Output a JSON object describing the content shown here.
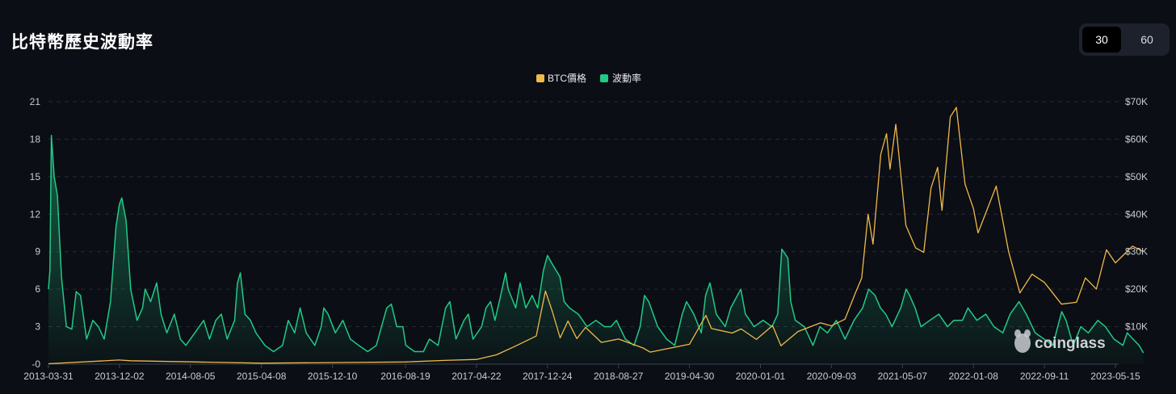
{
  "header": {
    "title": "比特幣歷史波動率"
  },
  "period_toggle": {
    "options": [
      "30",
      "60"
    ],
    "selected": "30"
  },
  "watermark": "coinglass",
  "chart_data": {
    "type": "line",
    "title": "比特幣歷史波動率",
    "legend": {
      "placement": "top-center",
      "entries": [
        "BTC價格",
        "波動率"
      ]
    },
    "grid": true,
    "x_tick_labels": [
      "2013-03-31",
      "2013-12-02",
      "2014-08-05",
      "2015-04-08",
      "2015-12-10",
      "2016-08-19",
      "2017-04-22",
      "2017-12-24",
      "2018-08-27",
      "2019-04-30",
      "2020-01-01",
      "2020-09-03",
      "2021-05-07",
      "2022-01-08",
      "2022-09-11",
      "2023-05-15"
    ],
    "y_left_ticks": [
      "-0",
      "3",
      "6",
      "9",
      "12",
      "15",
      "18",
      "21"
    ],
    "y_left_range": [
      0,
      21
    ],
    "y_right_ticks": [
      "$10K",
      "$20K",
      "$30K",
      "$40K",
      "$50K",
      "$60K",
      "$70K"
    ],
    "y_right_range": [
      0,
      70000
    ],
    "colors": {
      "price": "#f0b94a",
      "volatility": "#22c987"
    },
    "series": [
      {
        "name": "波動率",
        "axis": "left",
        "points": [
          [
            "2013-03-31",
            6.0
          ],
          [
            "2013-04-05",
            7.5
          ],
          [
            "2013-04-10",
            18.3
          ],
          [
            "2013-04-20",
            15.0
          ],
          [
            "2013-05-01",
            13.5
          ],
          [
            "2013-05-15",
            7.0
          ],
          [
            "2013-06-01",
            3.0
          ],
          [
            "2013-06-20",
            2.8
          ],
          [
            "2013-07-05",
            5.8
          ],
          [
            "2013-07-20",
            5.5
          ],
          [
            "2013-08-10",
            2.0
          ],
          [
            "2013-09-01",
            3.5
          ],
          [
            "2013-09-20",
            3.0
          ],
          [
            "2013-10-10",
            2.0
          ],
          [
            "2013-11-01",
            5.0
          ],
          [
            "2013-11-20",
            11.0
          ],
          [
            "2013-12-02",
            12.8
          ],
          [
            "2013-12-10",
            13.3
          ],
          [
            "2013-12-25",
            11.5
          ],
          [
            "2014-01-10",
            6.0
          ],
          [
            "2014-02-01",
            3.5
          ],
          [
            "2014-02-20",
            4.5
          ],
          [
            "2014-03-01",
            6.0
          ],
          [
            "2014-03-20",
            5.0
          ],
          [
            "2014-04-10",
            6.5
          ],
          [
            "2014-04-25",
            4.0
          ],
          [
            "2014-05-15",
            2.5
          ],
          [
            "2014-06-10",
            4.0
          ],
          [
            "2014-07-01",
            2.0
          ],
          [
            "2014-07-20",
            1.5
          ],
          [
            "2014-08-20",
            2.5
          ],
          [
            "2014-09-20",
            3.5
          ],
          [
            "2014-10-10",
            2.0
          ],
          [
            "2014-11-01",
            3.5
          ],
          [
            "2014-11-20",
            4.0
          ],
          [
            "2014-12-10",
            2.0
          ],
          [
            "2015-01-05",
            3.5
          ],
          [
            "2015-01-15",
            6.5
          ],
          [
            "2015-01-25",
            7.3
          ],
          [
            "2015-02-10",
            4.0
          ],
          [
            "2015-03-01",
            3.5
          ],
          [
            "2015-03-20",
            2.5
          ],
          [
            "2015-04-20",
            1.5
          ],
          [
            "2015-05-20",
            1.0
          ],
          [
            "2015-06-20",
            1.5
          ],
          [
            "2015-07-10",
            3.5
          ],
          [
            "2015-08-01",
            2.5
          ],
          [
            "2015-08-20",
            4.5
          ],
          [
            "2015-09-10",
            2.5
          ],
          [
            "2015-10-10",
            1.5
          ],
          [
            "2015-11-01",
            3.0
          ],
          [
            "2015-11-10",
            4.5
          ],
          [
            "2015-11-25",
            4.0
          ],
          [
            "2015-12-20",
            2.5
          ],
          [
            "2016-01-15",
            3.5
          ],
          [
            "2016-02-10",
            2.0
          ],
          [
            "2016-03-10",
            1.5
          ],
          [
            "2016-04-10",
            1.0
          ],
          [
            "2016-05-10",
            1.5
          ],
          [
            "2016-06-15",
            4.5
          ],
          [
            "2016-07-01",
            4.8
          ],
          [
            "2016-07-20",
            3.0
          ],
          [
            "2016-08-10",
            3.0
          ],
          [
            "2016-08-20",
            1.5
          ],
          [
            "2016-09-20",
            1.0
          ],
          [
            "2016-10-20",
            1.0
          ],
          [
            "2016-11-10",
            2.0
          ],
          [
            "2016-12-10",
            1.5
          ],
          [
            "2017-01-05",
            4.5
          ],
          [
            "2017-01-20",
            5.0
          ],
          [
            "2017-02-10",
            2.0
          ],
          [
            "2017-03-10",
            3.5
          ],
          [
            "2017-03-25",
            4.0
          ],
          [
            "2017-04-10",
            2.0
          ],
          [
            "2017-05-10",
            3.0
          ],
          [
            "2017-05-25",
            4.5
          ],
          [
            "2017-06-10",
            5.0
          ],
          [
            "2017-06-25",
            3.5
          ],
          [
            "2017-07-15",
            5.5
          ],
          [
            "2017-08-01",
            7.3
          ],
          [
            "2017-08-10",
            6.0
          ],
          [
            "2017-09-05",
            4.5
          ],
          [
            "2017-09-20",
            6.5
          ],
          [
            "2017-10-10",
            4.5
          ],
          [
            "2017-11-01",
            5.5
          ],
          [
            "2017-11-20",
            4.5
          ],
          [
            "2017-12-10",
            7.5
          ],
          [
            "2017-12-24",
            8.7
          ],
          [
            "2018-01-10",
            8.0
          ],
          [
            "2018-02-05",
            7.0
          ],
          [
            "2018-02-20",
            5.0
          ],
          [
            "2018-03-10",
            4.5
          ],
          [
            "2018-04-10",
            4.0
          ],
          [
            "2018-05-10",
            3.0
          ],
          [
            "2018-06-10",
            3.5
          ],
          [
            "2018-07-10",
            3.0
          ],
          [
            "2018-08-01",
            3.0
          ],
          [
            "2018-08-20",
            3.5
          ],
          [
            "2018-09-20",
            2.0
          ],
          [
            "2018-10-20",
            1.5
          ],
          [
            "2018-11-10",
            3.0
          ],
          [
            "2018-11-25",
            5.5
          ],
          [
            "2018-12-10",
            5.0
          ],
          [
            "2019-01-10",
            3.0
          ],
          [
            "2019-02-10",
            2.0
          ],
          [
            "2019-03-10",
            1.5
          ],
          [
            "2019-04-05",
            4.0
          ],
          [
            "2019-04-20",
            5.0
          ],
          [
            "2019-05-15",
            4.0
          ],
          [
            "2019-06-10",
            2.5
          ],
          [
            "2019-06-25",
            5.5
          ],
          [
            "2019-07-10",
            6.5
          ],
          [
            "2019-08-01",
            4.0
          ],
          [
            "2019-09-01",
            3.0
          ],
          [
            "2019-09-20",
            4.5
          ],
          [
            "2019-10-25",
            6.0
          ],
          [
            "2019-11-10",
            4.0
          ],
          [
            "2019-12-10",
            3.0
          ],
          [
            "2020-01-10",
            3.5
          ],
          [
            "2020-02-10",
            3.0
          ],
          [
            "2020-03-01",
            4.0
          ],
          [
            "2020-03-15",
            9.2
          ],
          [
            "2020-04-05",
            8.5
          ],
          [
            "2020-04-15",
            5.0
          ],
          [
            "2020-05-01",
            3.5
          ],
          [
            "2020-06-01",
            3.0
          ],
          [
            "2020-07-01",
            1.5
          ],
          [
            "2020-07-25",
            3.0
          ],
          [
            "2020-08-20",
            2.5
          ],
          [
            "2020-09-20",
            3.5
          ],
          [
            "2020-10-20",
            2.0
          ],
          [
            "2020-11-20",
            3.5
          ],
          [
            "2020-12-20",
            4.5
          ],
          [
            "2021-01-10",
            6.0
          ],
          [
            "2021-02-01",
            5.5
          ],
          [
            "2021-02-20",
            4.5
          ],
          [
            "2021-03-10",
            4.0
          ],
          [
            "2021-04-01",
            3.0
          ],
          [
            "2021-05-01",
            4.5
          ],
          [
            "2021-05-20",
            6.0
          ],
          [
            "2021-06-01",
            5.5
          ],
          [
            "2021-06-20",
            4.5
          ],
          [
            "2021-07-10",
            3.0
          ],
          [
            "2021-08-10",
            3.5
          ],
          [
            "2021-09-10",
            4.0
          ],
          [
            "2021-10-10",
            3.0
          ],
          [
            "2021-11-01",
            3.5
          ],
          [
            "2021-12-01",
            3.5
          ],
          [
            "2021-12-20",
            4.5
          ],
          [
            "2022-01-20",
            3.5
          ],
          [
            "2022-02-20",
            4.0
          ],
          [
            "2022-03-20",
            3.0
          ],
          [
            "2022-04-20",
            2.5
          ],
          [
            "2022-05-15",
            4.0
          ],
          [
            "2022-06-15",
            5.0
          ],
          [
            "2022-07-10",
            4.0
          ],
          [
            "2022-08-10",
            2.5
          ],
          [
            "2022-09-10",
            2.0
          ],
          [
            "2022-10-10",
            1.5
          ],
          [
            "2022-11-10",
            4.2
          ],
          [
            "2022-11-25",
            3.5
          ],
          [
            "2022-12-20",
            1.5
          ],
          [
            "2023-01-15",
            3.0
          ],
          [
            "2023-02-10",
            2.5
          ],
          [
            "2023-03-15",
            3.5
          ],
          [
            "2023-04-10",
            3.0
          ],
          [
            "2023-05-10",
            2.0
          ],
          [
            "2023-06-10",
            1.5
          ],
          [
            "2023-06-25",
            2.5
          ],
          [
            "2023-07-15",
            2.0
          ],
          [
            "2023-08-05",
            1.5
          ],
          [
            "2023-08-20",
            0.9
          ]
        ]
      },
      {
        "name": "BTC價格",
        "axis": "right",
        "points": [
          [
            "2013-03-31",
            100
          ],
          [
            "2013-11-30",
            1100
          ],
          [
            "2014-01-10",
            900
          ],
          [
            "2014-08-05",
            600
          ],
          [
            "2015-04-08",
            250
          ],
          [
            "2015-12-10",
            400
          ],
          [
            "2016-08-19",
            580
          ],
          [
            "2017-01-01",
            1000
          ],
          [
            "2017-04-22",
            1250
          ],
          [
            "2017-07-01",
            2500
          ],
          [
            "2017-09-01",
            4700
          ],
          [
            "2017-11-15",
            7500
          ],
          [
            "2017-12-17",
            19500
          ],
          [
            "2018-01-10",
            14000
          ],
          [
            "2018-02-06",
            7000
          ],
          [
            "2018-03-05",
            11500
          ],
          [
            "2018-04-05",
            6800
          ],
          [
            "2018-05-05",
            9800
          ],
          [
            "2018-06-29",
            5800
          ],
          [
            "2018-08-27",
            6700
          ],
          [
            "2018-11-20",
            4300
          ],
          [
            "2018-12-15",
            3200
          ],
          [
            "2019-04-30",
            5300
          ],
          [
            "2019-06-26",
            13000
          ],
          [
            "2019-07-15",
            9500
          ],
          [
            "2019-09-25",
            8300
          ],
          [
            "2019-10-26",
            9400
          ],
          [
            "2019-12-18",
            6600
          ],
          [
            "2020-02-12",
            10300
          ],
          [
            "2020-03-12",
            4900
          ],
          [
            "2020-05-10",
            8700
          ],
          [
            "2020-07-27",
            11000
          ],
          [
            "2020-09-03",
            10200
          ],
          [
            "2020-10-20",
            12000
          ],
          [
            "2020-11-25",
            19000
          ],
          [
            "2020-12-17",
            23000
          ],
          [
            "2021-01-08",
            40000
          ],
          [
            "2021-01-25",
            32000
          ],
          [
            "2021-02-21",
            56000
          ],
          [
            "2021-03-13",
            61500
          ],
          [
            "2021-03-25",
            52000
          ],
          [
            "2021-04-14",
            64000
          ],
          [
            "2021-05-19",
            37000
          ],
          [
            "2021-06-22",
            31000
          ],
          [
            "2021-07-20",
            29800
          ],
          [
            "2021-08-14",
            47000
          ],
          [
            "2021-09-06",
            52500
          ],
          [
            "2021-09-21",
            41000
          ],
          [
            "2021-10-20",
            66000
          ],
          [
            "2021-11-10",
            68500
          ],
          [
            "2021-12-10",
            48000
          ],
          [
            "2022-01-08",
            41500
          ],
          [
            "2022-01-24",
            35000
          ],
          [
            "2022-03-28",
            47500
          ],
          [
            "2022-05-10",
            30000
          ],
          [
            "2022-06-18",
            19000
          ],
          [
            "2022-07-30",
            24000
          ],
          [
            "2022-09-11",
            21800
          ],
          [
            "2022-11-09",
            16000
          ],
          [
            "2022-12-31",
            16500
          ],
          [
            "2023-01-31",
            23000
          ],
          [
            "2023-03-10",
            20000
          ],
          [
            "2023-04-14",
            30500
          ],
          [
            "2023-05-15",
            27000
          ],
          [
            "2023-07-13",
            31500
          ],
          [
            "2023-08-20",
            30000
          ]
        ]
      }
    ]
  }
}
